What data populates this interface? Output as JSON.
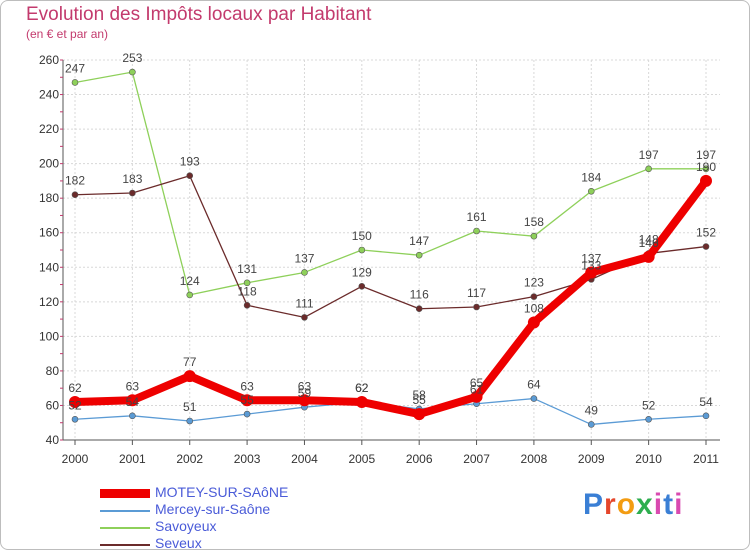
{
  "chart_data": {
    "type": "line",
    "title": "Evolution des Impôts locaux par Habitant",
    "subtitle": "(en € et par an)",
    "xlabel": "",
    "ylabel": "",
    "x": [
      "2000",
      "2001",
      "2002",
      "2003",
      "2004",
      "2005",
      "2006",
      "2007",
      "2008",
      "2009",
      "2010",
      "2011"
    ],
    "ylim": [
      40,
      260
    ],
    "yticks": [
      40,
      60,
      80,
      100,
      120,
      140,
      160,
      180,
      200,
      220,
      240,
      260
    ],
    "grid": true,
    "legend_position": "bottom-left",
    "series": [
      {
        "name": "Mercey-sur-Saône",
        "color": "#5b9bd5",
        "values": [
          52,
          54,
          51,
          55,
          59,
          62,
          58,
          61,
          64,
          49,
          52,
          54
        ],
        "labels": [
          "52",
          "54",
          "51",
          "55",
          "59",
          "62",
          "58",
          "61",
          "64",
          "49",
          "52",
          "54"
        ]
      },
      {
        "name": "Savoyeux",
        "color": "#8ed05a",
        "values": [
          247,
          253,
          124,
          131,
          137,
          150,
          147,
          161,
          158,
          184,
          197,
          197
        ],
        "labels": [
          "247",
          "253",
          "124",
          "131",
          "137",
          "150",
          "147",
          "161",
          "158",
          "184",
          "197",
          "197"
        ]
      },
      {
        "name": "Seveux",
        "color": "#6b2b2b",
        "values": [
          182,
          183,
          193,
          118,
          111,
          129,
          116,
          117,
          123,
          133,
          148,
          152
        ],
        "labels": [
          "182",
          "183",
          "193",
          "118",
          "111",
          "129",
          "116",
          "117",
          "123",
          "133",
          "148",
          "152"
        ]
      },
      {
        "name": "MOTEY-SUR-SAôNE",
        "color": "#ee0000",
        "values": [
          62,
          63,
          77,
          63,
          63,
          62,
          55,
          65,
          108,
          137,
          146,
          190
        ],
        "labels": [
          "62",
          "63",
          "77",
          "63",
          "63",
          "62",
          "55",
          "65",
          "108",
          "137",
          "146",
          "190"
        ],
        "bold": true
      }
    ]
  },
  "legend": {
    "items": [
      {
        "label": "MOTEY-SUR-SAôNE",
        "color": "#ee0000",
        "text_color": "#4a5bd8"
      },
      {
        "label": "Mercey-sur-Saône",
        "color": "#5b9bd5",
        "text_color": "#4a5bd8"
      },
      {
        "label": "Savoyeux",
        "color": "#8ed05a",
        "text_color": "#4a5bd8"
      },
      {
        "label": "Seveux",
        "color": "#6b2b2b",
        "text_color": "#4a5bd8"
      }
    ]
  },
  "brand": {
    "letters": [
      "P",
      "r",
      "o",
      "x",
      "i",
      "t",
      "i"
    ]
  }
}
